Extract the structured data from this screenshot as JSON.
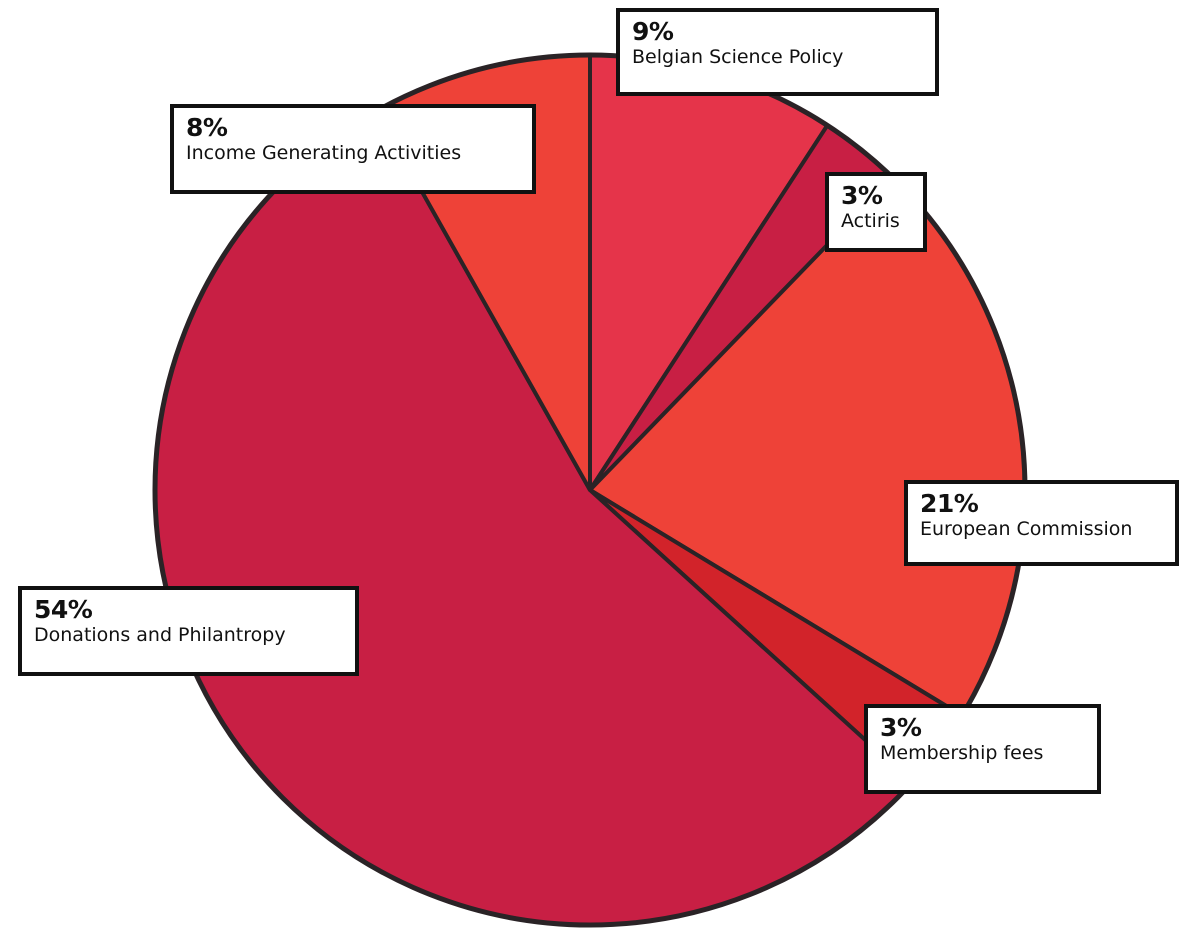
{
  "chart_data": {
    "type": "pie",
    "title": "",
    "slices": [
      {
        "label": "Belgian Science Policy",
        "value_label": "9%",
        "value": 9,
        "color": "#e5344a"
      },
      {
        "label": "Actiris",
        "value_label": "3%",
        "value": 3,
        "color": "#c81f44"
      },
      {
        "label": "European Commission",
        "value_label": "21%",
        "value": 21,
        "color": "#ee4238"
      },
      {
        "label": "Membership fees",
        "value_label": "3%",
        "value": 3,
        "color": "#d2232a"
      },
      {
        "label": "Donations and Philantropy",
        "value_label": "54%",
        "value": 54,
        "color": "#c81f44"
      },
      {
        "label": "Income Generating Activities",
        "value_label": "8%",
        "value": 8,
        "color": "#ee4238"
      }
    ],
    "start_angle_deg": 0,
    "direction": "clockwise",
    "outline_color": "#2a2326",
    "legend": "none"
  }
}
